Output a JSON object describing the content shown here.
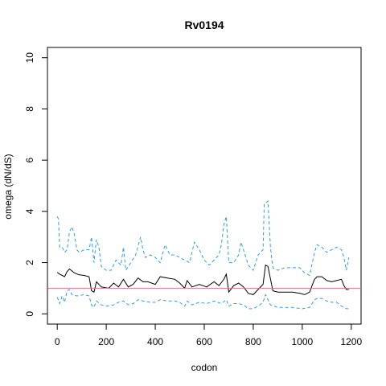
{
  "chart_data": {
    "type": "line",
    "title": "Rv0194",
    "xlabel": "codon",
    "ylabel": "omega (dN/dS)",
    "xlim": [
      -40,
      1240
    ],
    "ylim": [
      -0.4,
      10.4
    ],
    "x_ticks": [
      0,
      200,
      400,
      600,
      800,
      1000,
      1200
    ],
    "y_ticks": [
      0,
      2,
      4,
      6,
      8,
      10
    ],
    "reference_line": {
      "y": 1.0,
      "color": "#d9738a"
    },
    "grid": false,
    "legend": "none",
    "series": [
      {
        "color": "#000000",
        "style": "solid",
        "points": [
          [
            0,
            1.62
          ],
          [
            10,
            1.55
          ],
          [
            20,
            1.5
          ],
          [
            30,
            1.45
          ],
          [
            40,
            1.65
          ],
          [
            50,
            1.75
          ],
          [
            70,
            1.6
          ],
          [
            90,
            1.52
          ],
          [
            110,
            1.5
          ],
          [
            130,
            1.45
          ],
          [
            140,
            0.9
          ],
          [
            150,
            0.85
          ],
          [
            160,
            1.25
          ],
          [
            180,
            1.05
          ],
          [
            210,
            1.0
          ],
          [
            230,
            1.2
          ],
          [
            250,
            1.05
          ],
          [
            270,
            1.35
          ],
          [
            290,
            1.05
          ],
          [
            310,
            1.15
          ],
          [
            330,
            1.4
          ],
          [
            350,
            1.25
          ],
          [
            370,
            1.25
          ],
          [
            400,
            1.15
          ],
          [
            420,
            1.45
          ],
          [
            450,
            1.4
          ],
          [
            480,
            1.35
          ],
          [
            500,
            1.2
          ],
          [
            520,
            1.0
          ],
          [
            530,
            1.3
          ],
          [
            550,
            1.05
          ],
          [
            580,
            1.15
          ],
          [
            610,
            1.05
          ],
          [
            640,
            1.25
          ],
          [
            660,
            1.1
          ],
          [
            680,
            1.35
          ],
          [
            690,
            1.55
          ],
          [
            700,
            0.85
          ],
          [
            720,
            1.1
          ],
          [
            740,
            1.2
          ],
          [
            760,
            1.05
          ],
          [
            780,
            0.8
          ],
          [
            800,
            0.75
          ],
          [
            820,
            0.95
          ],
          [
            840,
            1.15
          ],
          [
            850,
            1.9
          ],
          [
            860,
            1.85
          ],
          [
            880,
            0.9
          ],
          [
            900,
            0.85
          ],
          [
            930,
            0.85
          ],
          [
            960,
            0.85
          ],
          [
            990,
            0.8
          ],
          [
            1010,
            0.75
          ],
          [
            1030,
            0.85
          ],
          [
            1050,
            1.35
          ],
          [
            1060,
            1.45
          ],
          [
            1080,
            1.45
          ],
          [
            1100,
            1.3
          ],
          [
            1120,
            1.25
          ],
          [
            1140,
            1.3
          ],
          [
            1160,
            1.35
          ],
          [
            1170,
            1.1
          ],
          [
            1180,
            0.95
          ],
          [
            1190,
            0.95
          ]
        ]
      },
      {
        "color": "#2e9fdf",
        "style": "dashed",
        "points": [
          [
            0,
            3.8
          ],
          [
            5,
            3.7
          ],
          [
            10,
            2.6
          ],
          [
            20,
            2.6
          ],
          [
            30,
            2.4
          ],
          [
            40,
            2.5
          ],
          [
            50,
            3.2
          ],
          [
            60,
            3.4
          ],
          [
            70,
            3.1
          ],
          [
            80,
            2.5
          ],
          [
            90,
            2.4
          ],
          [
            110,
            2.5
          ],
          [
            130,
            2.5
          ],
          [
            140,
            3.0
          ],
          [
            150,
            2.0
          ],
          [
            160,
            2.9
          ],
          [
            170,
            2.6
          ],
          [
            180,
            1.85
          ],
          [
            200,
            1.7
          ],
          [
            220,
            1.7
          ],
          [
            240,
            2.1
          ],
          [
            260,
            1.9
          ],
          [
            270,
            2.6
          ],
          [
            280,
            1.7
          ],
          [
            300,
            2.0
          ],
          [
            320,
            2.3
          ],
          [
            340,
            3.0
          ],
          [
            350,
            2.5
          ],
          [
            360,
            2.2
          ],
          [
            380,
            2.3
          ],
          [
            400,
            2.2
          ],
          [
            420,
            2.0
          ],
          [
            440,
            2.7
          ],
          [
            460,
            2.3
          ],
          [
            480,
            2.3
          ],
          [
            500,
            2.2
          ],
          [
            520,
            2.1
          ],
          [
            540,
            2.0
          ],
          [
            560,
            2.8
          ],
          [
            580,
            2.5
          ],
          [
            600,
            2.1
          ],
          [
            620,
            1.9
          ],
          [
            640,
            2.1
          ],
          [
            660,
            2.3
          ],
          [
            670,
            2.7
          ],
          [
            680,
            3.5
          ],
          [
            690,
            3.8
          ],
          [
            700,
            2.0
          ],
          [
            720,
            2.0
          ],
          [
            740,
            2.3
          ],
          [
            750,
            2.8
          ],
          [
            760,
            2.5
          ],
          [
            780,
            1.9
          ],
          [
            800,
            1.7
          ],
          [
            820,
            2.3
          ],
          [
            840,
            2.5
          ],
          [
            845,
            4.3
          ],
          [
            860,
            4.4
          ],
          [
            870,
            2.6
          ],
          [
            880,
            1.8
          ],
          [
            900,
            1.7
          ],
          [
            930,
            1.8
          ],
          [
            960,
            1.8
          ],
          [
            990,
            1.8
          ],
          [
            1010,
            1.6
          ],
          [
            1030,
            1.5
          ],
          [
            1050,
            2.4
          ],
          [
            1060,
            2.7
          ],
          [
            1080,
            2.6
          ],
          [
            1100,
            2.4
          ],
          [
            1120,
            2.5
          ],
          [
            1140,
            2.6
          ],
          [
            1160,
            2.5
          ],
          [
            1170,
            2.2
          ],
          [
            1180,
            1.7
          ],
          [
            1190,
            2.2
          ]
        ]
      },
      {
        "color": "#2e9fdf",
        "style": "dashed",
        "points": [
          [
            0,
            0.65
          ],
          [
            10,
            0.4
          ],
          [
            20,
            0.7
          ],
          [
            30,
            0.45
          ],
          [
            40,
            0.9
          ],
          [
            50,
            0.95
          ],
          [
            60,
            0.75
          ],
          [
            80,
            0.7
          ],
          [
            110,
            0.75
          ],
          [
            130,
            0.7
          ],
          [
            140,
            0.35
          ],
          [
            150,
            0.25
          ],
          [
            160,
            0.5
          ],
          [
            180,
            0.35
          ],
          [
            200,
            0.3
          ],
          [
            230,
            0.35
          ],
          [
            250,
            0.45
          ],
          [
            270,
            0.5
          ],
          [
            290,
            0.35
          ],
          [
            310,
            0.4
          ],
          [
            330,
            0.55
          ],
          [
            350,
            0.5
          ],
          [
            380,
            0.45
          ],
          [
            400,
            0.45
          ],
          [
            420,
            0.55
          ],
          [
            450,
            0.5
          ],
          [
            480,
            0.5
          ],
          [
            500,
            0.45
          ],
          [
            520,
            0.3
          ],
          [
            530,
            0.5
          ],
          [
            550,
            0.35
          ],
          [
            580,
            0.45
          ],
          [
            610,
            0.4
          ],
          [
            640,
            0.5
          ],
          [
            670,
            0.4
          ],
          [
            690,
            0.55
          ],
          [
            700,
            0.3
          ],
          [
            720,
            0.4
          ],
          [
            740,
            0.4
          ],
          [
            760,
            0.35
          ],
          [
            780,
            0.2
          ],
          [
            800,
            0.2
          ],
          [
            820,
            0.3
          ],
          [
            840,
            0.45
          ],
          [
            850,
            0.75
          ],
          [
            870,
            0.35
          ],
          [
            900,
            0.25
          ],
          [
            930,
            0.25
          ],
          [
            960,
            0.25
          ],
          [
            1000,
            0.2
          ],
          [
            1030,
            0.25
          ],
          [
            1050,
            0.55
          ],
          [
            1060,
            0.6
          ],
          [
            1080,
            0.6
          ],
          [
            1100,
            0.5
          ],
          [
            1120,
            0.45
          ],
          [
            1140,
            0.45
          ],
          [
            1160,
            0.3
          ],
          [
            1180,
            0.2
          ],
          [
            1190,
            0.2
          ]
        ]
      }
    ]
  }
}
